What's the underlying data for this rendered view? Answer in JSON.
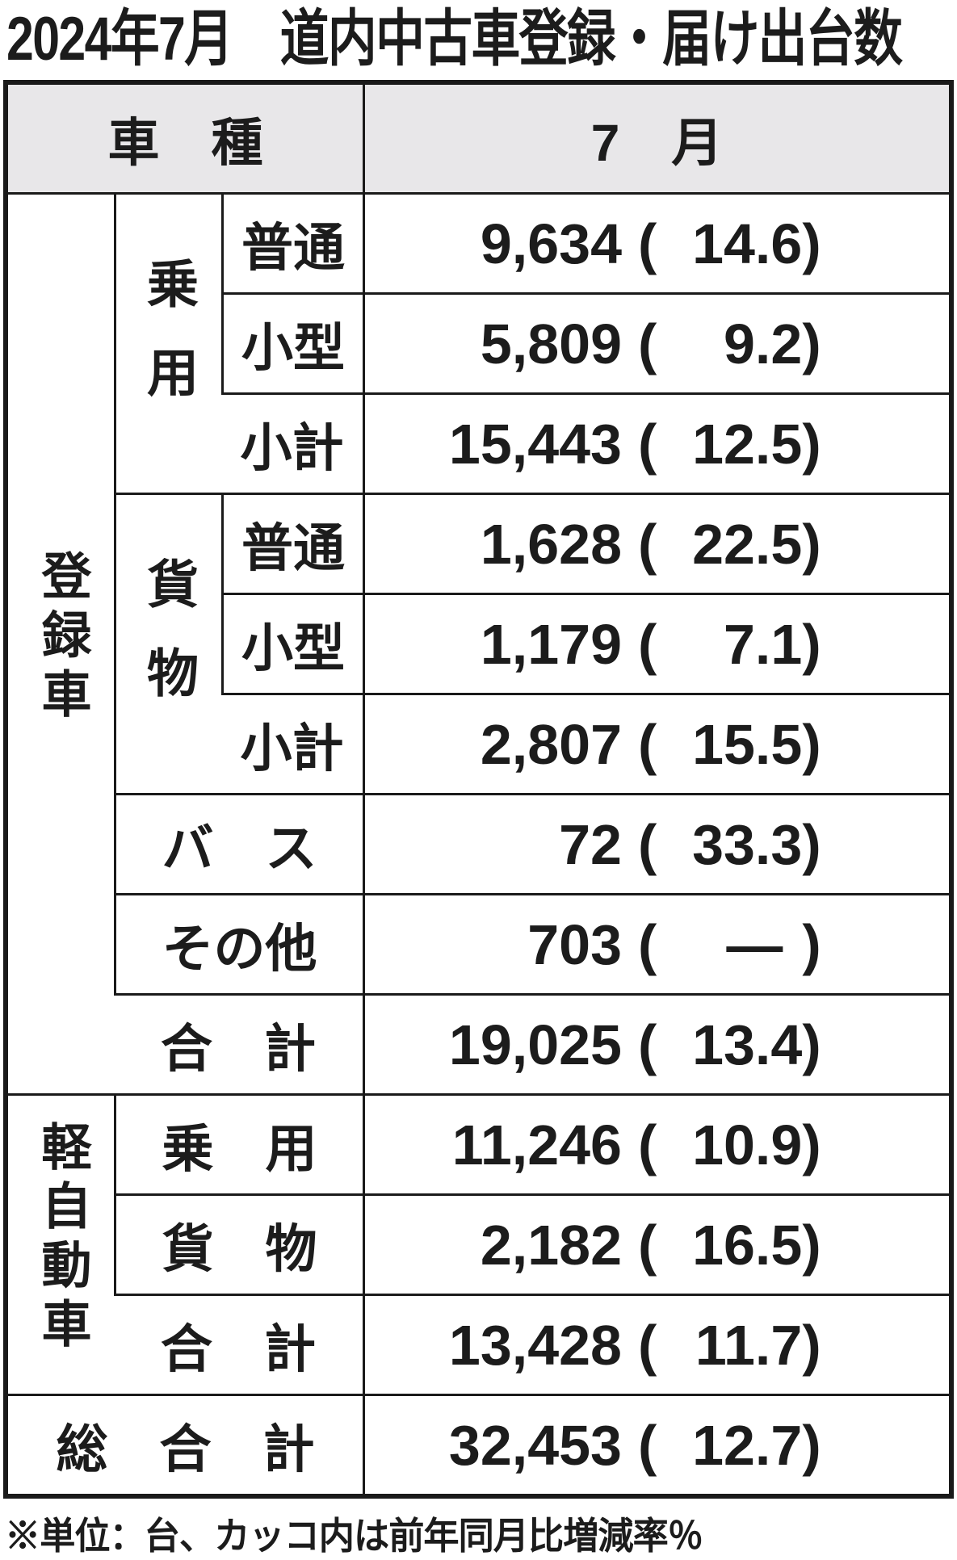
{
  "title": "2024年7月　道内中古車登録・届け出台数",
  "footnote": "※単位：台、カッコ内は前年同月比増減率％",
  "colors": {
    "header_bg": "#e8e7e9",
    "border": "#1a1a1a",
    "text": "#1c1c1c"
  },
  "punct": {
    "open": "(",
    "close": ")"
  },
  "header": {
    "col_vehicle": "車　種",
    "col_month": "7　月"
  },
  "groups": {
    "registered": "登録車",
    "kei": "軽自動車",
    "reg_passenger": "乗用",
    "reg_cargo": "貨物"
  },
  "rows": [
    {
      "label": "普通",
      "value": "9,634",
      "pct": "14.6"
    },
    {
      "label": "小型",
      "value": "5,809",
      "pct": "9.2"
    },
    {
      "label": "小計",
      "value": "15,443",
      "pct": "12.5"
    },
    {
      "label": "普通",
      "value": "1,628",
      "pct": "22.5"
    },
    {
      "label": "小型",
      "value": "1,179",
      "pct": "7.1"
    },
    {
      "label": "小計",
      "value": "2,807",
      "pct": "15.5"
    },
    {
      "label": "バ　ス",
      "value": "72",
      "pct": "33.3"
    },
    {
      "label": "その他",
      "value": "703",
      "pct": "—"
    },
    {
      "label": "合　計",
      "value": "19,025",
      "pct": "13.4"
    },
    {
      "label": "乗　用",
      "value": "11,246",
      "pct": "10.9"
    },
    {
      "label": "貨　物",
      "value": "2,182",
      "pct": "16.5"
    },
    {
      "label": "合　計",
      "value": "13,428",
      "pct": "11.7"
    },
    {
      "label": "総　合　計",
      "value": "32,453",
      "pct": "12.7"
    }
  ],
  "chart_data": {
    "type": "table",
    "title": "2024年7月　道内中古車登録・届け出台数",
    "unit_note": "単位：台、カッコ内は前年同月比増減率％",
    "columns": [
      "車種",
      "7月 台数",
      "前年同月比増減率%"
    ],
    "rows": [
      {
        "group": "登録車",
        "subgroup": "乗用",
        "category": "普通",
        "units": 9634,
        "yoy_pct": 14.6
      },
      {
        "group": "登録車",
        "subgroup": "乗用",
        "category": "小型",
        "units": 5809,
        "yoy_pct": 9.2
      },
      {
        "group": "登録車",
        "subgroup": "乗用",
        "category": "小計",
        "units": 15443,
        "yoy_pct": 12.5
      },
      {
        "group": "登録車",
        "subgroup": "貨物",
        "category": "普通",
        "units": 1628,
        "yoy_pct": 22.5
      },
      {
        "group": "登録車",
        "subgroup": "貨物",
        "category": "小型",
        "units": 1179,
        "yoy_pct": 7.1
      },
      {
        "group": "登録車",
        "subgroup": "貨物",
        "category": "小計",
        "units": 2807,
        "yoy_pct": 15.5
      },
      {
        "group": "登録車",
        "subgroup": null,
        "category": "バス",
        "units": 72,
        "yoy_pct": 33.3
      },
      {
        "group": "登録車",
        "subgroup": null,
        "category": "その他",
        "units": 703,
        "yoy_pct": null
      },
      {
        "group": "登録車",
        "subgroup": null,
        "category": "合計",
        "units": 19025,
        "yoy_pct": 13.4
      },
      {
        "group": "軽自動車",
        "subgroup": null,
        "category": "乗用",
        "units": 11246,
        "yoy_pct": 10.9
      },
      {
        "group": "軽自動車",
        "subgroup": null,
        "category": "貨物",
        "units": 2182,
        "yoy_pct": 16.5
      },
      {
        "group": "軽自動車",
        "subgroup": null,
        "category": "合計",
        "units": 13428,
        "yoy_pct": 11.7
      },
      {
        "group": "総合計",
        "subgroup": null,
        "category": "総合計",
        "units": 32453,
        "yoy_pct": 12.7
      }
    ]
  }
}
